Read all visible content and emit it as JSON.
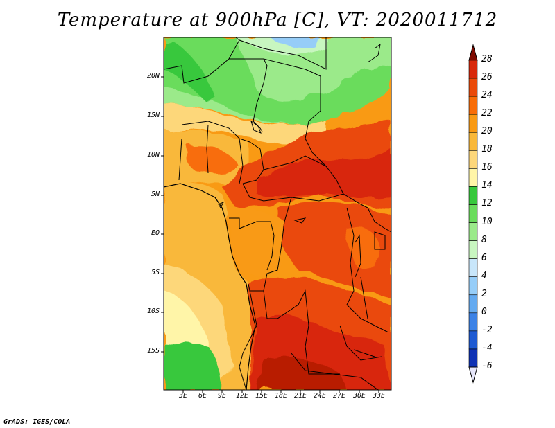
{
  "title": "Temperature at 900hPa [C], VT: 2020011712",
  "credit": "GrADS: IGES/COLA",
  "map": {
    "y_ticks": [
      "20N",
      "15N",
      "10N",
      "5N",
      "EQ",
      "5S",
      "10S",
      "15S"
    ],
    "x_ticks": [
      "3E",
      "6E",
      "9E",
      "12E",
      "15E",
      "18E",
      "21E",
      "24E",
      "27E",
      "30E",
      "33E"
    ]
  },
  "colorbar": {
    "levels": [
      "28",
      "26",
      "24",
      "22",
      "20",
      "18",
      "16",
      "14",
      "12",
      "10",
      "8",
      "6",
      "4",
      "2",
      "0",
      "-2",
      "-4",
      "-6"
    ],
    "colors": [
      "#7f0a00",
      "#d8280a",
      "#ea4a0a",
      "#f86d08",
      "#f99a14",
      "#f9b83a",
      "#fdd77a",
      "#fff5a8",
      "#37c83c",
      "#6adc5c",
      "#9bea8a",
      "#c8f6c0",
      "#c8e6fa",
      "#96cdf8",
      "#64aaf0",
      "#3c82e6",
      "#1e5ad2",
      "#0f32b4",
      "#0a1478",
      "#e6e6fa"
    ]
  },
  "colors": {
    "hot": "#d8280a",
    "warm": "#f86d08",
    "mild": "#f9b83a",
    "pale": "#fff5a8",
    "green": "#37c83c",
    "lightgreen": "#9bea8a",
    "blue": "#96cdf8"
  }
}
